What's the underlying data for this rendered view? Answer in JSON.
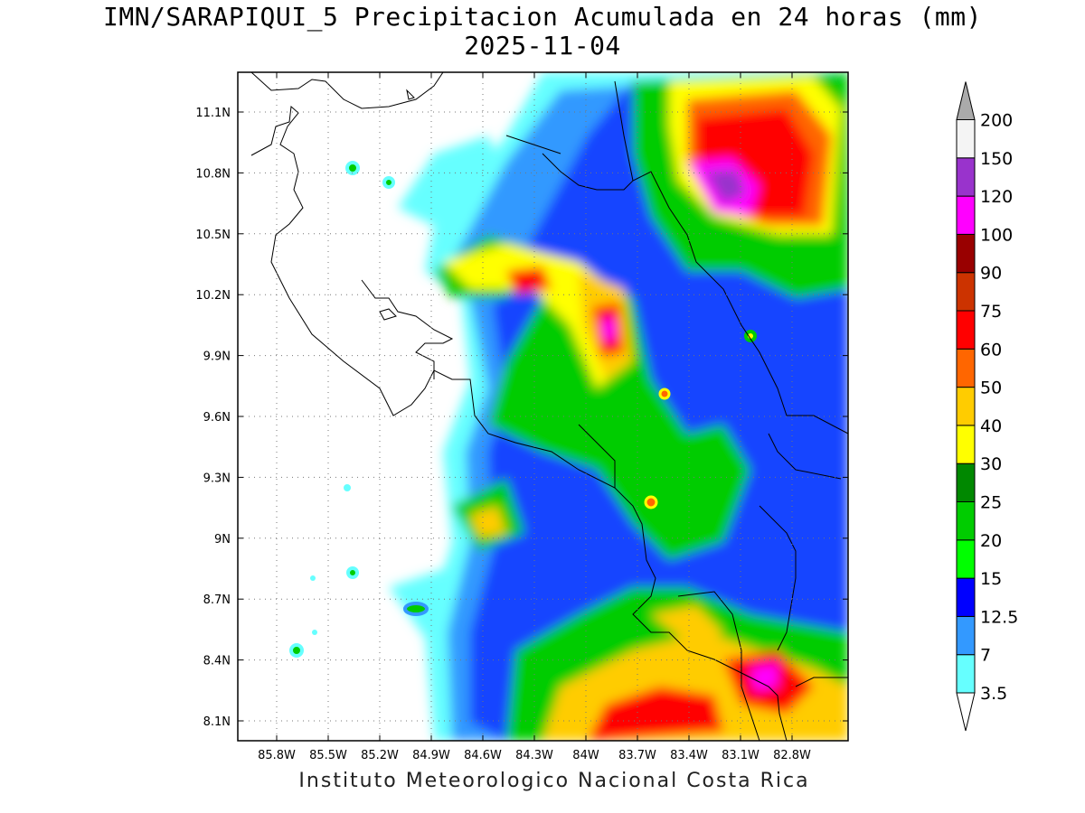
{
  "title": "IMN/SARAPIQUI_5 Precipitacion Acumulada en 24 horas (mm)",
  "date": "2025-11-04",
  "footer": "Instituto Meteorologico Nacional Costa Rica",
  "map": {
    "lon_ticks": [
      "85.8W",
      "85.5W",
      "85.2W",
      "84.9W",
      "84.6W",
      "84.3W",
      "84W",
      "83.7W",
      "83.4W",
      "83.1W",
      "82.8W"
    ],
    "lat_ticks": [
      "11.1N",
      "10.8N",
      "10.5N",
      "10.2N",
      "9.9N",
      "9.6N",
      "9.3N",
      "9N",
      "8.7N",
      "8.4N",
      "8.1N"
    ],
    "grid": "dotted"
  },
  "colorbar": {
    "levels": [
      "3.5",
      "7",
      "12.5",
      "15",
      "20",
      "25",
      "30",
      "40",
      "50",
      "60",
      "75",
      "90",
      "100",
      "120",
      "150",
      "200"
    ],
    "colors": [
      "#ffffff",
      "#66ffff",
      "#3399ff",
      "#0000ff",
      "#00ff00",
      "#00cc00",
      "#008800",
      "#ffff00",
      "#ffcc00",
      "#ff6600",
      "#ff0000",
      "#cc3300",
      "#990000",
      "#ff00ff",
      "#9933cc",
      "#f4f4f4",
      "#aaaaaa"
    ]
  }
}
